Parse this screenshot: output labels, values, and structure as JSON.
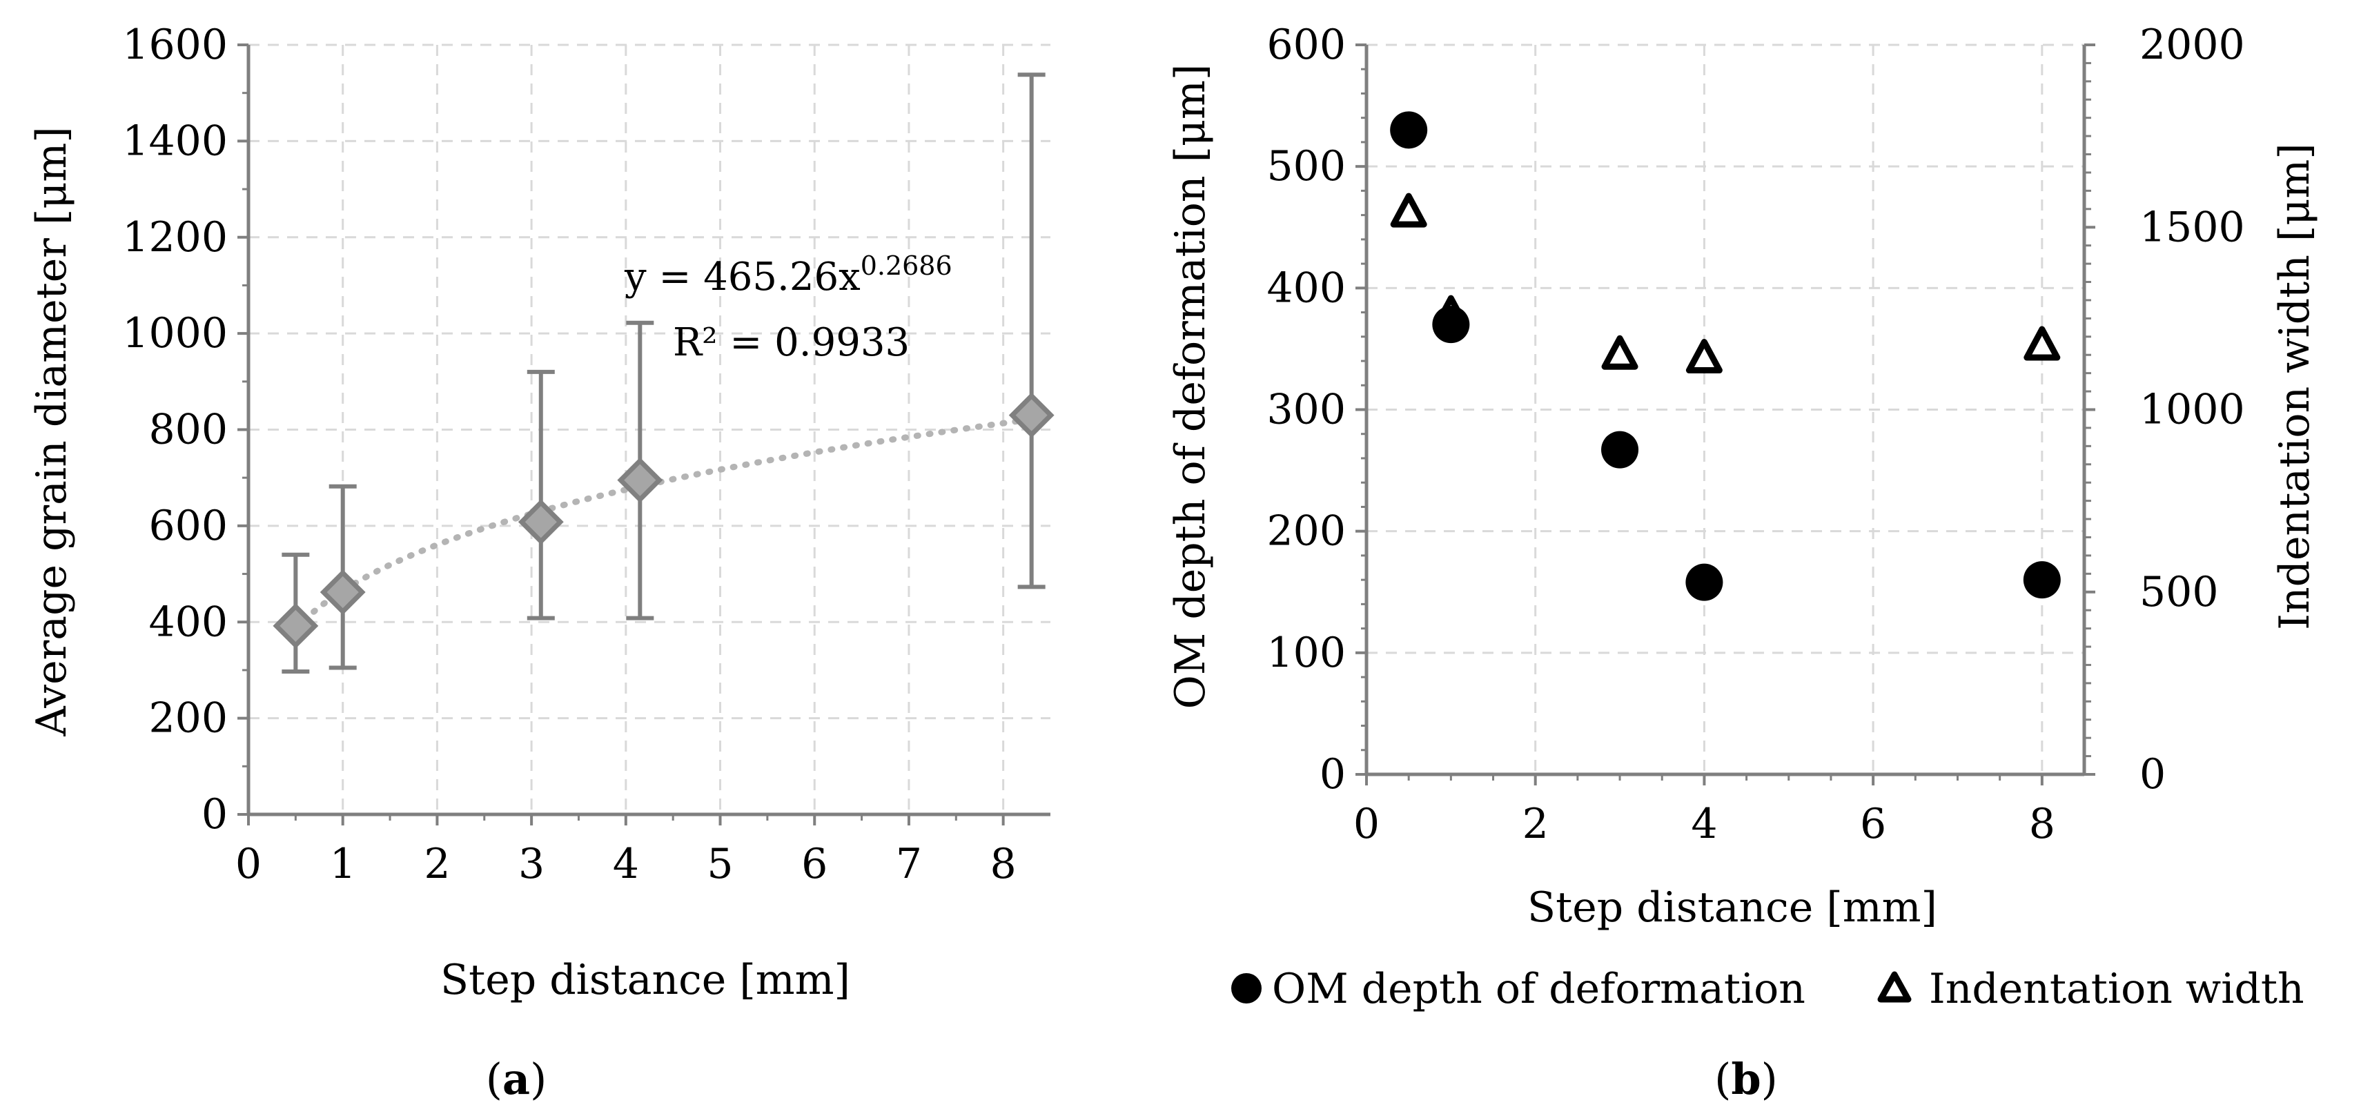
{
  "chart_data": [
    {
      "type": "scatter",
      "panel_label_prefix": "(",
      "panel_label_letter": "a",
      "panel_label_suffix": ")",
      "xlabel": "Step distance [mm]",
      "ylabel": "Average grain diameter [μm]",
      "xlim": [
        0,
        8.5
      ],
      "ylim": [
        0,
        1600
      ],
      "x_ticks": [
        {
          "label": "0",
          "value": 0
        },
        {
          "label": "1",
          "value": 1
        },
        {
          "label": "2",
          "value": 2
        },
        {
          "label": "3",
          "value": 3
        },
        {
          "label": "4",
          "value": 4
        },
        {
          "label": "5",
          "value": 5
        },
        {
          "label": "6",
          "value": 6
        },
        {
          "label": "7",
          "value": 7
        },
        {
          "label": "8",
          "value": 8
        }
      ],
      "y_ticks": [
        {
          "label": "0",
          "value": 0
        },
        {
          "label": "200",
          "value": 200
        },
        {
          "label": "400",
          "value": 400
        },
        {
          "label": "600",
          "value": 600
        },
        {
          "label": "800",
          "value": 800
        },
        {
          "label": "1000",
          "value": 1000
        },
        {
          "label": "1200",
          "value": 1200
        },
        {
          "label": "1400",
          "value": 1400
        },
        {
          "label": "1600",
          "value": 1600
        }
      ],
      "grid": true,
      "series": [
        {
          "name": "Average grain diameter",
          "marker": "diamond",
          "color": "#a6a6a6",
          "points": [
            {
              "x": 0.5,
              "y": 392,
              "err_low": 297,
              "err_high": 540
            },
            {
              "x": 1.0,
              "y": 462,
              "err_low": 305,
              "err_high": 682
            },
            {
              "x": 3.1,
              "y": 608,
              "err_low": 408,
              "err_high": 920
            },
            {
              "x": 4.15,
              "y": 695,
              "err_low": 408,
              "err_high": 1022
            },
            {
              "x": 8.3,
              "y": 830,
              "err_low": 473,
              "err_high": 1538
            }
          ]
        }
      ],
      "trendline": {
        "type": "power",
        "a": 465.26,
        "b": 0.2686,
        "x_range": [
          0.5,
          8.3
        ],
        "color": "#b4b4b4",
        "equation_prefix": "y = 465.26x",
        "equation_exponent": "0.2686",
        "r2_label": "R² = 0.9933"
      },
      "errorbar_color": "#7f7f7f"
    },
    {
      "type": "scatter",
      "panel_label_prefix": "(",
      "panel_label_letter": "b",
      "panel_label_suffix": ")",
      "xlabel": "Step distance [mm]",
      "ylabel": "OM depth of deformation [μm]",
      "ylabel_right": "Indentation width [μm]",
      "xlim": [
        0,
        8.5
      ],
      "ylim": [
        0,
        600
      ],
      "ylim_right": [
        0,
        2000
      ],
      "x_ticks": [
        {
          "label": "0",
          "value": 0
        },
        {
          "label": "2",
          "value": 2
        },
        {
          "label": "4",
          "value": 4
        },
        {
          "label": "6",
          "value": 6
        },
        {
          "label": "8",
          "value": 8
        }
      ],
      "y_ticks": [
        {
          "label": "0",
          "value": 0
        },
        {
          "label": "100",
          "value": 100
        },
        {
          "label": "200",
          "value": 200
        },
        {
          "label": "300",
          "value": 300
        },
        {
          "label": "400",
          "value": 400
        },
        {
          "label": "500",
          "value": 500
        },
        {
          "label": "600",
          "value": 600
        }
      ],
      "y_ticks_right": [
        {
          "label": "0",
          "value": 0
        },
        {
          "label": "500",
          "value": 500
        },
        {
          "label": "1000",
          "value": 1000
        },
        {
          "label": "1500",
          "value": 1500
        },
        {
          "label": "2000",
          "value": 2000
        }
      ],
      "grid": true,
      "series": [
        {
          "name": "OM depth of deformation",
          "axis": "left",
          "marker": "circle",
          "color": "#000000",
          "points": [
            {
              "x": 0.5,
              "y": 530
            },
            {
              "x": 1.0,
              "y": 370
            },
            {
              "x": 3.0,
              "y": 267
            },
            {
              "x": 4.0,
              "y": 158
            },
            {
              "x": 8.0,
              "y": 160
            }
          ]
        },
        {
          "name": "Indentation width",
          "axis": "right",
          "marker": "triangle-open",
          "color": "#000000",
          "points": [
            {
              "x": 0.5,
              "y": 1540
            },
            {
              "x": 1.0,
              "y": 1260
            },
            {
              "x": 3.0,
              "y": 1150
            },
            {
              "x": 4.0,
              "y": 1140
            },
            {
              "x": 8.0,
              "y": 1175
            }
          ]
        }
      ],
      "legend": {
        "position": "bottom",
        "entries": [
          "OM depth of deformation",
          "Indentation width"
        ]
      }
    }
  ]
}
